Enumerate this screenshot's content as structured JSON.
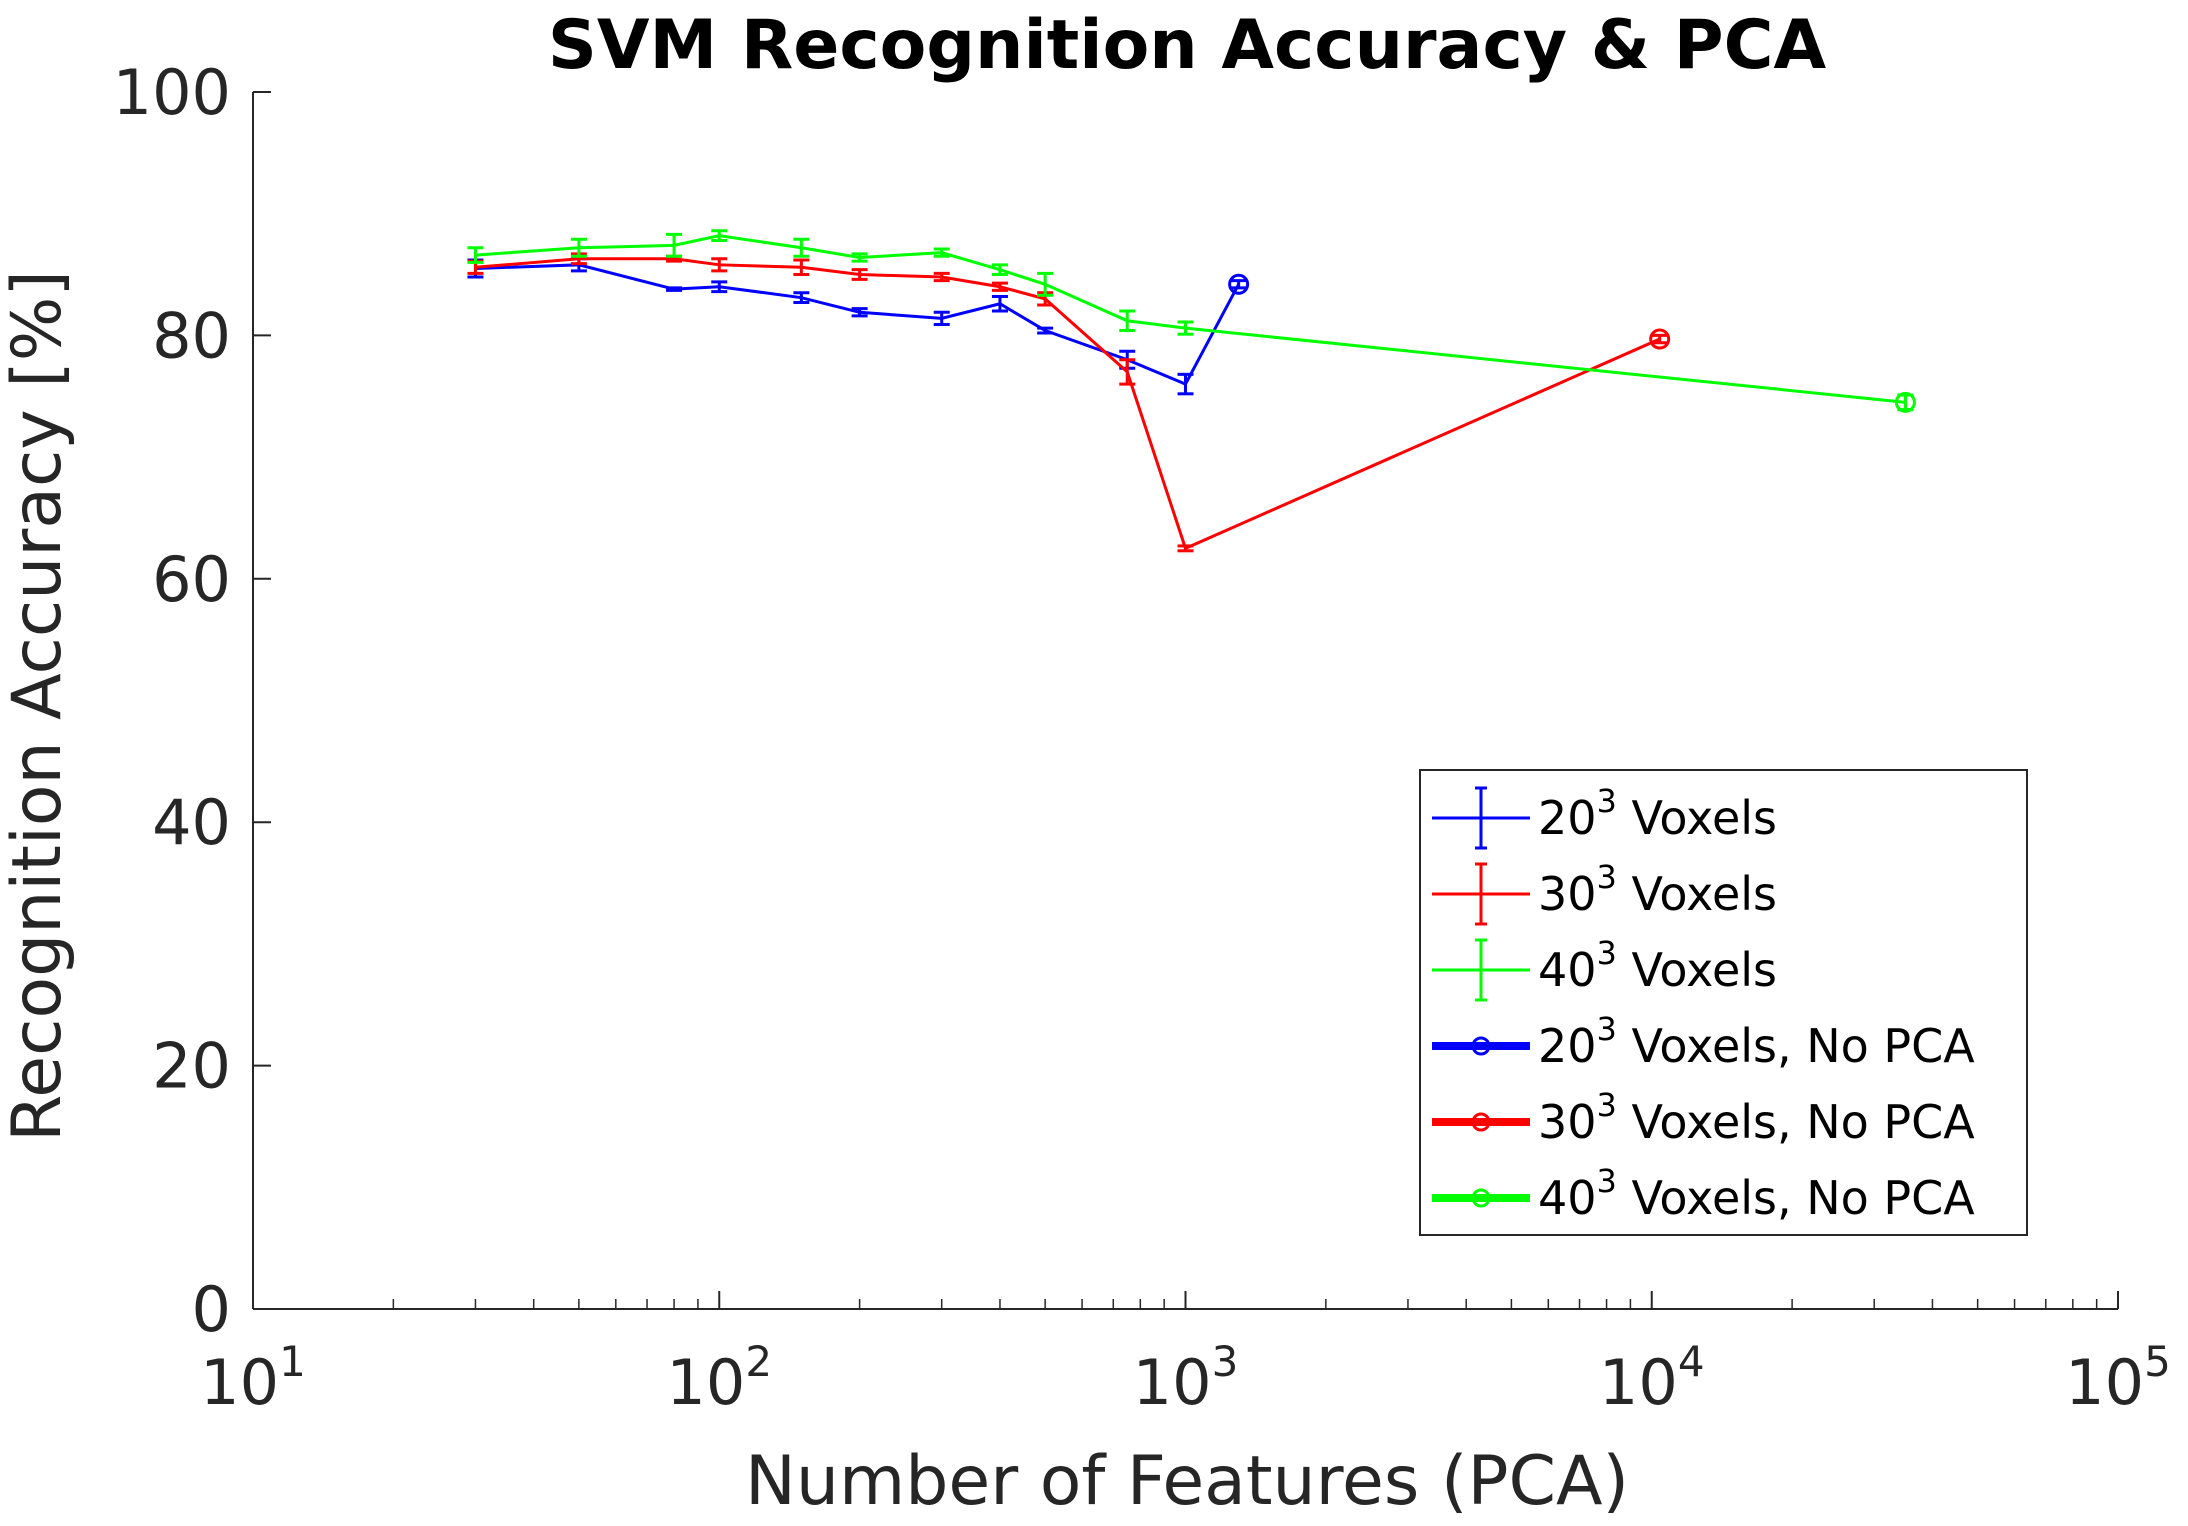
{
  "chart_data": {
    "type": "line",
    "title": "SVM Recognition Accuracy & PCA",
    "xlabel": "Number of Features (PCA)",
    "ylabel": "Recognition Accuracy [%]",
    "xscale": "log",
    "xlim": [
      10,
      100000
    ],
    "ylim": [
      0,
      100
    ],
    "x_ticks": [
      {
        "base": "10",
        "exp": "1"
      },
      {
        "base": "10",
        "exp": "2"
      },
      {
        "base": "10",
        "exp": "3"
      },
      {
        "base": "10",
        "exp": "4"
      },
      {
        "base": "10",
        "exp": "5"
      }
    ],
    "x_tick_values": [
      10,
      100,
      1000,
      10000,
      100000
    ],
    "y_ticks": [
      "0",
      "20",
      "40",
      "60",
      "80",
      "100"
    ],
    "y_tick_values": [
      0,
      20,
      40,
      60,
      80,
      100
    ],
    "legend_position": "bottom-right",
    "series": [
      {
        "name": "20³ Voxels",
        "legend_base": "20",
        "legend_exp": "3",
        "legend_suffix": " Voxels",
        "color": "#0000ff",
        "style": "errorbar",
        "x": [
          30,
          50,
          80,
          100,
          150,
          200,
          300,
          400,
          500,
          750,
          1000
        ],
        "y": [
          85.5,
          85.8,
          83.8,
          84.0,
          83.1,
          81.9,
          81.4,
          82.6,
          80.4,
          78.0,
          76.0
        ],
        "err": [
          0.7,
          0.5,
          0.1,
          0.4,
          0.4,
          0.3,
          0.5,
          0.6,
          0.2,
          0.7,
          0.8
        ]
      },
      {
        "name": "30³ Voxels",
        "legend_base": "30",
        "legend_exp": "3",
        "legend_suffix": " Voxels",
        "color": "#ff0000",
        "style": "errorbar",
        "x": [
          30,
          50,
          80,
          100,
          150,
          200,
          300,
          400,
          500,
          750,
          1000
        ],
        "y": [
          85.6,
          86.3,
          86.3,
          85.8,
          85.6,
          85.0,
          84.8,
          84.0,
          83.0,
          77.0,
          62.5
        ],
        "err": [
          0.5,
          0.4,
          0.2,
          0.5,
          0.6,
          0.4,
          0.3,
          0.3,
          0.5,
          1.0,
          0.2
        ]
      },
      {
        "name": "40³ Voxels",
        "legend_base": "40",
        "legend_exp": "3",
        "legend_suffix": " Voxels",
        "color": "#00ff00",
        "style": "errorbar",
        "x": [
          30,
          50,
          80,
          100,
          150,
          200,
          300,
          400,
          500,
          750,
          1000,
          35000
        ],
        "y": [
          86.6,
          87.2,
          87.4,
          88.2,
          87.2,
          86.4,
          86.8,
          85.4,
          84.2,
          81.2,
          80.6,
          74.5
        ],
        "err": [
          0.6,
          0.7,
          0.9,
          0.4,
          0.7,
          0.3,
          0.3,
          0.4,
          0.9,
          0.8,
          0.5,
          0.6
        ]
      },
      {
        "name": "20³ Voxels, No PCA",
        "legend_base": "20",
        "legend_exp": "3",
        "legend_suffix": " Voxels, No PCA",
        "color": "#0000ff",
        "style": "marker",
        "x": [
          1300
        ],
        "y": [
          84.2
        ],
        "err": [
          0.3
        ]
      },
      {
        "name": "30³ Voxels, No PCA",
        "legend_base": "30",
        "legend_exp": "3",
        "legend_suffix": " Voxels, No PCA",
        "color": "#ff0000",
        "style": "marker",
        "x": [
          10400
        ],
        "y": [
          79.7
        ],
        "err": [
          0.3
        ]
      },
      {
        "name": "40³ Voxels, No PCA",
        "legend_base": "40",
        "legend_exp": "3",
        "legend_suffix": " Voxels, No PCA",
        "color": "#00ff00",
        "style": "marker",
        "x": [
          35000
        ],
        "y": [
          74.5
        ],
        "err": [
          0.6
        ]
      }
    ],
    "connectors": [
      {
        "color": "#0000ff",
        "x": [
          1000,
          1300
        ],
        "y": [
          76.0,
          84.2
        ]
      },
      {
        "color": "#ff0000",
        "x": [
          1000,
          10400
        ],
        "y": [
          62.5,
          79.7
        ]
      }
    ]
  }
}
